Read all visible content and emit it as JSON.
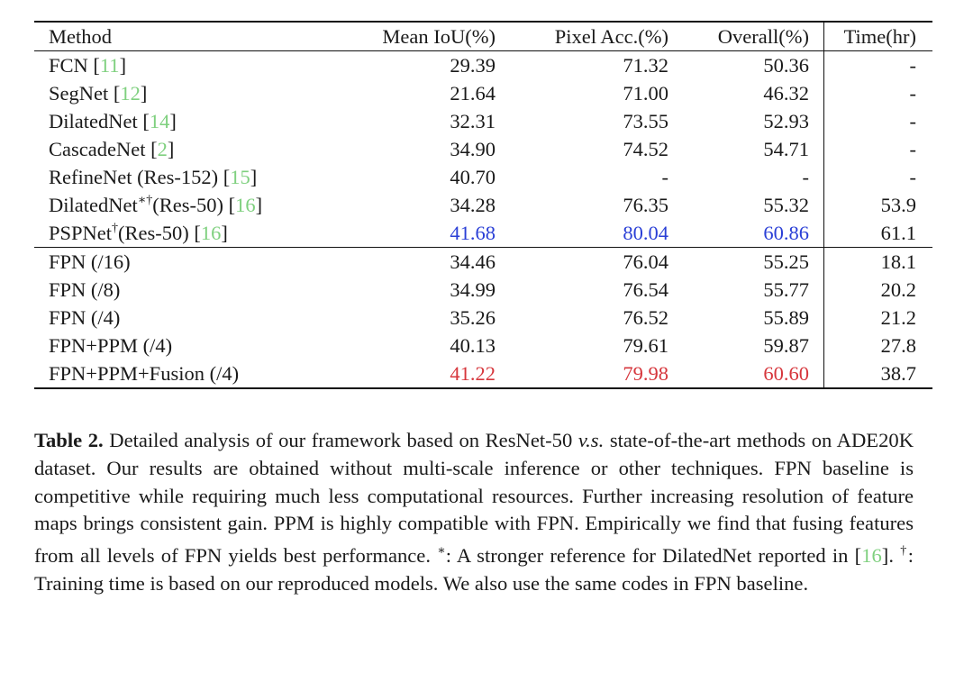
{
  "table": {
    "headers": {
      "method": "Method",
      "miou": "Mean IoU(%)",
      "pix": "Pixel Acc.(%)",
      "overall": "Overall(%)",
      "time": "Time(hr)"
    },
    "rows": [
      {
        "name": "FCN [",
        "sup": "",
        "after": "",
        "ref": "11",
        "close": "]",
        "miou": "29.39",
        "pix": "71.32",
        "overall": "50.36",
        "time": "-"
      },
      {
        "name": "SegNet [",
        "sup": "",
        "after": "",
        "ref": "12",
        "close": "]",
        "miou": "21.64",
        "pix": "71.00",
        "overall": "46.32",
        "time": "-"
      },
      {
        "name": "DilatedNet [",
        "sup": "",
        "after": "",
        "ref": "14",
        "close": "]",
        "miou": "32.31",
        "pix": "73.55",
        "overall": "52.93",
        "time": "-"
      },
      {
        "name": "CascadeNet [",
        "sup": "",
        "after": "",
        "ref": "2",
        "close": "]",
        "miou": "34.90",
        "pix": "74.52",
        "overall": "54.71",
        "time": "-"
      },
      {
        "name": "RefineNet (Res-152) [",
        "sup": "",
        "after": "",
        "ref": "15",
        "close": "]",
        "miou": "40.70",
        "pix": "-",
        "overall": "-",
        "time": "-"
      },
      {
        "name": "DilatedNet",
        "sup": "∗†",
        "after": "(Res-50) [",
        "ref": "16",
        "close": "]",
        "miou": "34.28",
        "pix": "76.35",
        "overall": "55.32",
        "time": "53.9"
      },
      {
        "name": "PSPNet",
        "sup": "†",
        "after": "(Res-50) [",
        "ref": "16",
        "close": "]",
        "miou": "41.68",
        "pix": "80.04",
        "overall": "60.86",
        "time": "61.1"
      }
    ],
    "rows2": [
      {
        "name": "FPN (/16)",
        "miou": "34.46",
        "pix": "76.04",
        "overall": "55.25",
        "time": "18.1"
      },
      {
        "name": "FPN (/8)",
        "miou": "34.99",
        "pix": "76.54",
        "overall": "55.77",
        "time": "20.2"
      },
      {
        "name": "FPN (/4)",
        "miou": "35.26",
        "pix": "76.52",
        "overall": "55.89",
        "time": "21.2"
      },
      {
        "name": "FPN+PPM (/4)",
        "miou": "40.13",
        "pix": "79.61",
        "overall": "59.87",
        "time": "27.8"
      },
      {
        "name": "FPN+PPM+Fusion (/4)",
        "miou": "41.22",
        "pix": "79.98",
        "overall": "60.60",
        "time": "38.7"
      }
    ],
    "highlight": {
      "best_color": "#2a3fd6",
      "ours_color": "#d6363c",
      "ref_color": "#7fd07f"
    }
  },
  "caption": {
    "label": "Table 2.",
    "p1": " Detailed analysis of our framework based on ResNet-50 ",
    "vs": "v.s.",
    "p2": " state-of-the-art methods on ADE20K dataset. Our results are obtained without multi-scale inference or other techniques. FPN baseline is competitive while requiring much less computational resources. Further increasing resolution of feature maps brings consistent gain. PPM is highly compatible with FPN. Empirically we find that fusing features from all levels of FPN yields best performance. ",
    "star": "∗",
    "p3": ": A stronger reference for DilatedNet reported in [",
    "ref": "16",
    "p4": "].",
    "dagger": "†",
    "p5": ": Training time is based on our reproduced models. We also use the same codes in FPN baseline."
  }
}
